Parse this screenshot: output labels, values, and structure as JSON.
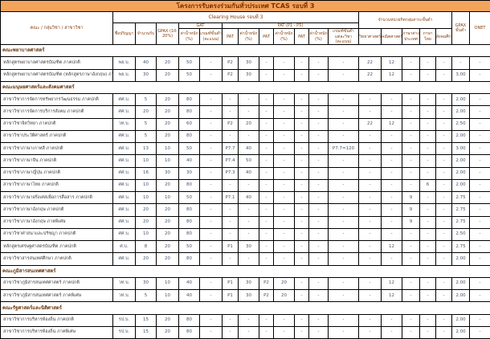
{
  "title": "โครงการรับตรงร่วมกันทั่วประเทศ TCAS รอบที่ 3",
  "colors": {
    "title_bg": "#F5A45B",
    "title_text": "#7F2B00",
    "header_text": "#843C0C",
    "body_text": "#44546A",
    "border": "#000000"
  },
  "header": {
    "clearing_house": "Clearing House รอบที่ 3",
    "faculty_col": "คณะ / กลุ่มวิชา / สาขาวิชา",
    "degree": "ชื่อปริญญา",
    "count": "จำนวนรับ",
    "gpax": "GPAX (10-20%)",
    "gat_group": "GAT",
    "pat_group": "PAT (P1 - P5)",
    "weight": "ค่าน้ำหนัก (%)",
    "gat_min": "เกณฑ์ขั้นต่ำ (คะแนน)",
    "pat": "PAT",
    "pat_min": "เกณฑ์ขั้นต่ำแต่ละวิชา (คะแนน)",
    "credits_group": "จำนวนหน่วยกิตกลุ่มสาระขั้นต่ำ",
    "science": "วิทยาศาสตร์",
    "math": "คณิตศาสตร์",
    "foreign_lang": "ภาษาต่างประเทศ",
    "thai": "ภาษาไทย",
    "social": "สังคมศึกษา",
    "gpax_min": "GPAX ขั้นต่ำ",
    "onet": "ONET"
  },
  "rows": [
    {
      "type": "section",
      "label": "คณะพยาบาลศาสตร์"
    },
    {
      "type": "row",
      "name": "หลักสูตรพยาบาลศาสตรบัณฑิต ภาคปกติ",
      "cells": [
        "พย.บ.",
        "40",
        "20",
        "50",
        "-",
        "P2",
        "30",
        "-",
        "-",
        "-",
        "-",
        "-",
        "22",
        "12",
        "-",
        "-",
        "-",
        "-",
        "-"
      ]
    },
    {
      "type": "row",
      "name": "หลักสูตรพยาบาลศาสตรบัณฑิต (หลักสูตรภาษาอังกฤษ) ภาคปกติ",
      "cells": [
        "พย.บ.",
        "30",
        "20",
        "50",
        "-",
        "P2",
        "30",
        "-",
        "-",
        "-",
        "-",
        "-",
        "22",
        "12",
        "-",
        "-",
        "-",
        "3.00",
        "-"
      ]
    },
    {
      "type": "section",
      "label": "คณะมนุษยศาสตร์และสังคมศาสตร์"
    },
    {
      "type": "row",
      "name": "สาขาวิชาการจัดการทรัพยากรวัฒนธรรม ภาคปกติ",
      "cells": [
        "ศศ.บ.",
        "5",
        "20",
        "80",
        "-",
        "-",
        "-",
        "-",
        "-",
        "-",
        "-",
        "-",
        "-",
        "-",
        "-",
        "-",
        "-",
        "2.00",
        "-"
      ]
    },
    {
      "type": "row",
      "name": "สาขาวิชาการจัดการบริการสังคม ภาคปกติ",
      "cells": [
        "ศศ.บ.",
        "20",
        "20",
        "80",
        "-",
        "-",
        "-",
        "-",
        "-",
        "-",
        "-",
        "-",
        "-",
        "-",
        "-",
        "-",
        "-",
        "2.00",
        "-"
      ]
    },
    {
      "type": "row",
      "name": "สาขาวิชาจิตวิทยา ภาคปกติ",
      "cells": [
        "วท.บ.",
        "5",
        "20",
        "60",
        "-",
        "P2",
        "20",
        "-",
        "-",
        "-",
        "-",
        "-",
        "22",
        "12",
        "-",
        "-",
        "-",
        "2.50",
        "-"
      ]
    },
    {
      "type": "row",
      "name": "สาขาวิชาประวัติศาสตร์ ภาคปกติ",
      "cells": [
        "ศศ.บ.",
        "5",
        "20",
        "80",
        "-",
        "-",
        "-",
        "-",
        "-",
        "-",
        "-",
        "-",
        "-",
        "-",
        "-",
        "-",
        "-",
        "2.00",
        "-"
      ]
    },
    {
      "type": "row",
      "name": "สาขาวิชาภาษาเกาหลี ภาคปกติ",
      "cells": [
        "ศศ.บ.",
        "13",
        "10",
        "50",
        "-",
        "P7.7",
        "40",
        "-",
        "-",
        "-",
        "-",
        "P7.7=120",
        "-",
        "-",
        "-",
        "-",
        "-",
        "3.00",
        "-"
      ]
    },
    {
      "type": "row",
      "name": "สาขาวิชาภาษาจีน ภาคปกติ",
      "cells": [
        "ศศ.บ.",
        "10",
        "10",
        "40",
        "-",
        "P7.4",
        "50",
        "-",
        "-",
        "-",
        "-",
        "-",
        "-",
        "-",
        "-",
        "-",
        "-",
        "2.00",
        "-"
      ]
    },
    {
      "type": "row",
      "name": "สาขาวิชาภาษาญี่ปุ่น ภาคปกติ",
      "cells": [
        "ศศ.บ.",
        "16",
        "30",
        "30",
        "-",
        "P7.3",
        "40",
        "-",
        "-",
        "-",
        "-",
        "-",
        "-",
        "-",
        "-",
        "-",
        "-",
        "2.00",
        "-"
      ]
    },
    {
      "type": "row",
      "name": "สาขาวิชาภาษาไทย ภาคปกติ",
      "cells": [
        "ศศ.บ.",
        "10",
        "20",
        "80",
        "-",
        "-",
        "-",
        "-",
        "-",
        "-",
        "-",
        "-",
        "-",
        "-",
        "-",
        "6",
        "-",
        "2.00",
        "-"
      ]
    },
    {
      "type": "row",
      "name": "สาขาวิชาภาษาฝรั่งเศสเพื่อการสื่อสาร ภาคปกติ",
      "cells": [
        "ศศ.บ.",
        "10",
        "10",
        "50",
        "-",
        "P7.1",
        "40",
        "-",
        "-",
        "-",
        "-",
        "-",
        "-",
        "-",
        "9",
        "-",
        "-",
        "2.75",
        "-"
      ]
    },
    {
      "type": "row",
      "name": "สาขาวิชาภาษาอังกฤษ ภาคปกติ",
      "cells": [
        "ศศ.บ.",
        "20",
        "20",
        "80",
        "-",
        "-",
        "-",
        "-",
        "-",
        "-",
        "-",
        "-",
        "-",
        "-",
        "9",
        "-",
        "-",
        "2.75",
        "-"
      ]
    },
    {
      "type": "row",
      "name": "สาขาวิชาภาษาอังกฤษ ภาคพิเศษ",
      "cells": [
        "ศศ.บ.",
        "20",
        "20",
        "80",
        "-",
        "-",
        "-",
        "-",
        "-",
        "-",
        "-",
        "-",
        "-",
        "-",
        "9",
        "-",
        "-",
        "2.75",
        "-"
      ]
    },
    {
      "type": "row",
      "name": "สาขาวิชาศาสนาและปรัชญา ภาคปกติ",
      "cells": [
        "ศศ.บ.",
        "10",
        "20",
        "80",
        "-",
        "-",
        "-",
        "-",
        "-",
        "-",
        "-",
        "-",
        "-",
        "-",
        "-",
        "-",
        "-",
        "2.50",
        "-"
      ]
    },
    {
      "type": "row",
      "name": "หลักสูตรเศรษฐศาสตรบัณฑิต ภาคปกติ",
      "cells": [
        "ศ.บ.",
        "8",
        "20",
        "50",
        "-",
        "P1",
        "30",
        "-",
        "-",
        "-",
        "-",
        "-",
        "-",
        "12",
        "-",
        "-",
        "-",
        "2.75",
        "-"
      ]
    },
    {
      "type": "row",
      "name": "สาขาวิชาสารสนเทศศึกษา ภาคปกติ",
      "cells": [
        "ศศ.บ.",
        "20",
        "20",
        "80",
        "-",
        "-",
        "-",
        "-",
        "-",
        "-",
        "-",
        "-",
        "-",
        "-",
        "-",
        "-",
        "-",
        "2.00",
        "-"
      ]
    },
    {
      "type": "section",
      "label": "คณะภูมิสารสนเทศศาสตร์"
    },
    {
      "type": "row",
      "name": "สาขาวิชาภูมิสารสนเทศศาสตร์ ภาคปกติ",
      "cells": [
        "วท.บ.",
        "30",
        "10",
        "40",
        "-",
        "P1",
        "30",
        "P2",
        "20",
        "-",
        "-",
        "-",
        "-",
        "12",
        "-",
        "-",
        "-",
        "2.00",
        "-"
      ]
    },
    {
      "type": "row",
      "name": "สาขาวิชาภูมิสารสนเทศศาสตร์ ภาคพิเศษ",
      "cells": [
        "วท.บ.",
        "5",
        "10",
        "40",
        "-",
        "P1",
        "30",
        "P2",
        "20",
        "-",
        "-",
        "-",
        "-",
        "12",
        "-",
        "-",
        "-",
        "2.00",
        "-"
      ]
    },
    {
      "type": "section",
      "label": "คณะรัฐศาสตร์และนิติศาสตร์"
    },
    {
      "type": "row",
      "name": "สาขาวิชาการบริหารท้องถิ่น ภาคปกติ",
      "cells": [
        "รป.บ.",
        "15",
        "20",
        "80",
        "-",
        "-",
        "-",
        "-",
        "-",
        "-",
        "-",
        "-",
        "-",
        "-",
        "-",
        "-",
        "-",
        "2.00",
        "-"
      ]
    },
    {
      "type": "row",
      "name": "สาขาวิชาการบริหารท้องถิ่น ภาคพิเศษ",
      "cells": [
        "รป.บ.",
        "15",
        "20",
        "80",
        "-",
        "-",
        "-",
        "-",
        "-",
        "-",
        "-",
        "-",
        "-",
        "-",
        "-",
        "-",
        "-",
        "2.00",
        "-"
      ]
    }
  ]
}
